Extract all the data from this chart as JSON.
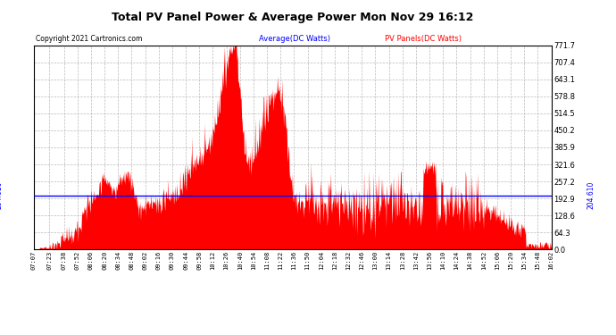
{
  "title": "Total PV Panel Power & Average Power Mon Nov 29 16:12",
  "copyright": "Copyright 2021 Cartronics.com",
  "legend_avg": "Average(DC Watts)",
  "legend_pv": "PV Panels(DC Watts)",
  "avg_value": 204.61,
  "left_label": "204.610",
  "right_yticks": [
    0.0,
    64.3,
    128.6,
    192.9,
    257.2,
    321.6,
    385.9,
    450.2,
    514.5,
    578.8,
    643.1,
    707.4,
    771.7
  ],
  "ymin": 0.0,
  "ymax": 771.7,
  "bg_color": "#ffffff",
  "plot_bg_color": "#ffffff",
  "fill_color": "#ff0000",
  "avg_line_color": "#0000ff",
  "title_color": "#000000",
  "copyright_color": "#000000",
  "avg_legend_color": "#0000ff",
  "pv_legend_color": "#ff0000",
  "xtick_labels": [
    "07:07",
    "07:23",
    "07:38",
    "07:52",
    "08:06",
    "08:20",
    "08:34",
    "08:48",
    "09:02",
    "09:16",
    "09:30",
    "09:44",
    "09:58",
    "10:12",
    "10:26",
    "10:40",
    "10:54",
    "11:08",
    "11:22",
    "11:36",
    "11:50",
    "12:04",
    "12:18",
    "12:32",
    "12:46",
    "13:00",
    "13:14",
    "13:28",
    "13:42",
    "13:56",
    "14:10",
    "14:24",
    "14:38",
    "14:52",
    "15:06",
    "15:20",
    "15:34",
    "15:48",
    "16:02"
  ],
  "avg_line_y": 204.61
}
